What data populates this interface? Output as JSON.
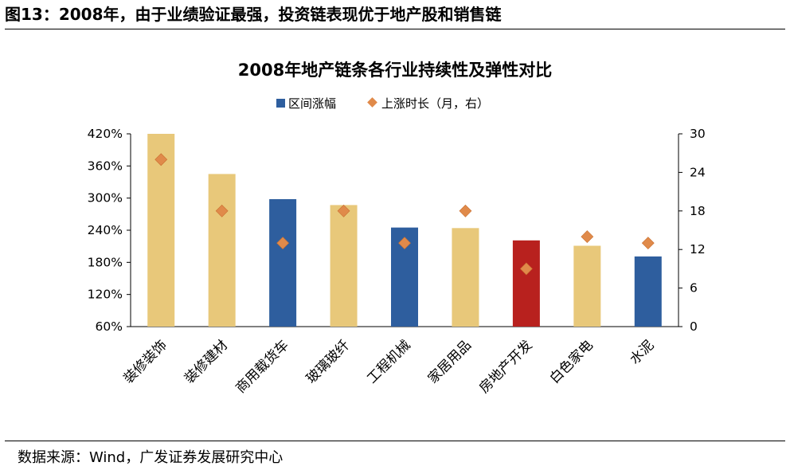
{
  "figure": {
    "title": "图13：2008年，由于业绩验证最强，投资链表现优于地产股和销售链",
    "source": "数据来源：Wind，广发证券发展研究中心"
  },
  "chart_data": {
    "type": "bar",
    "title": "2008年地产链条各行业持续性及弹性对比",
    "categories": [
      "装修装饰",
      "装修建材",
      "商用载货车",
      "玻璃玻纤",
      "工程机械",
      "家居用品",
      "房地产开发",
      "白色家电",
      "水泥"
    ],
    "series": [
      {
        "name": "区间涨幅",
        "kind": "bar",
        "axis": "left",
        "values": [
          4.2,
          3.45,
          2.98,
          2.87,
          2.45,
          2.44,
          2.21,
          2.11,
          1.91
        ],
        "colors": [
          "#E8C87A",
          "#E8C87A",
          "#2E5E9E",
          "#E8C87A",
          "#2E5E9E",
          "#E8C87A",
          "#B8211E",
          "#E8C87A",
          "#2E5E9E"
        ]
      },
      {
        "name": "上涨时长（月，右）",
        "kind": "marker",
        "axis": "right",
        "values": [
          26,
          18,
          13,
          18,
          13,
          18,
          9,
          14,
          13
        ],
        "color": "#E08A4A"
      }
    ],
    "y_left": {
      "min": 0.6,
      "max": 4.2,
      "ticks": [
        "60%",
        "120%",
        "180%",
        "240%",
        "300%",
        "360%",
        "420%"
      ]
    },
    "y_right": {
      "min": 0,
      "max": 30,
      "ticks": [
        "0",
        "6",
        "12",
        "18",
        "24",
        "30"
      ]
    },
    "legend": {
      "position": "top-center",
      "bar_color": "#2E5E9E",
      "marker_color": "#E08A4A"
    },
    "grid": false
  }
}
